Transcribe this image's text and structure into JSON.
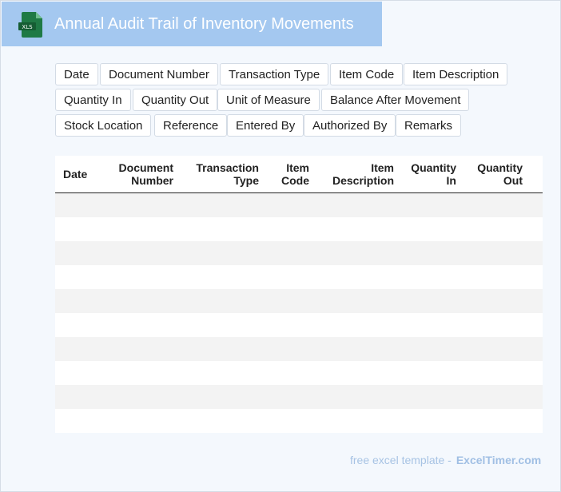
{
  "header": {
    "title": "Annual Audit Trail of Inventory Movements",
    "icon": "xls-file-icon",
    "icon_text": "XLS",
    "accent_color": "#a4c8f0",
    "icon_color": "#1f7a45"
  },
  "fields": [
    "Date",
    "Document Number",
    "Transaction Type",
    "Item Code",
    "Item Description",
    "Quantity In",
    "Quantity Out",
    "Unit of Measure",
    "Balance After Movement",
    "Stock Location",
    "Reference",
    "Entered By",
    "Authorized By",
    "Remarks"
  ],
  "table": {
    "columns": [
      {
        "line1": "Date",
        "line2": ""
      },
      {
        "line1": "Document",
        "line2": "Number"
      },
      {
        "line1": "Transaction",
        "line2": "Type"
      },
      {
        "line1": "Item",
        "line2": "Code"
      },
      {
        "line1": "Item",
        "line2": "Description"
      },
      {
        "line1": "Quantity",
        "line2": "In"
      },
      {
        "line1": "Quantity",
        "line2": "Out"
      }
    ],
    "row_count": 10
  },
  "footer": {
    "text": "free excel template -",
    "brand": "ExcelTimer.com"
  }
}
